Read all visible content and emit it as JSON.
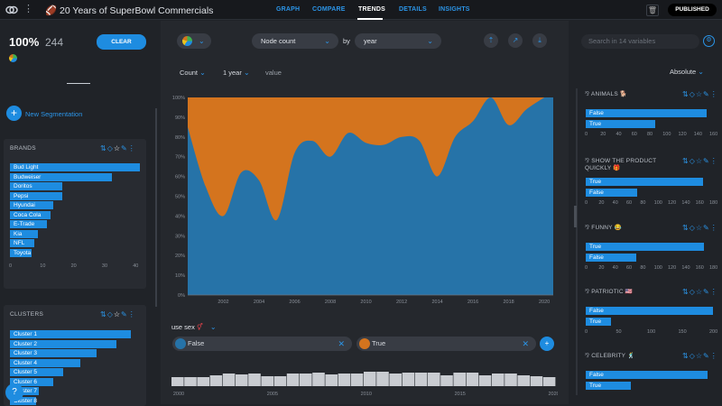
{
  "app": {
    "title": "20 Years of SuperBowl Commercials",
    "publish_label": "PUBLISHED"
  },
  "nav": {
    "tabs": [
      "GRAPH",
      "COMPARE",
      "TRENDS",
      "DETAILS",
      "INSIGHTS"
    ],
    "active": "TRENDS"
  },
  "colors": {
    "accent": "#1e8ce0",
    "series_false": "#2673a8",
    "series_true": "#d4741e",
    "background": "#202328"
  },
  "left": {
    "percent": "100%",
    "count": "244",
    "clear_label": "CLEAR",
    "new_segmentation_label": "New Segmentation",
    "brands": {
      "title": "BRANDS",
      "axis_ticks": [
        "0",
        "10",
        "20",
        "30",
        "40"
      ],
      "items": [
        {
          "label": "Bud Light",
          "value": 42
        },
        {
          "label": "Budweiser",
          "value": 33
        },
        {
          "label": "Doritos",
          "value": 17
        },
        {
          "label": "Pepsi",
          "value": 17
        },
        {
          "label": "Hyundai",
          "value": 14
        },
        {
          "label": "Coca Cola",
          "value": 13
        },
        {
          "label": "E-Trade",
          "value": 12
        },
        {
          "label": "Kia",
          "value": 9
        },
        {
          "label": "NFL",
          "value": 8
        },
        {
          "label": "Toyota",
          "value": 7
        }
      ]
    },
    "clusters": {
      "title": "CLUSTERS",
      "items": [
        {
          "label": "Cluster 1",
          "value": 100
        },
        {
          "label": "Cluster 2",
          "value": 88
        },
        {
          "label": "Cluster 3",
          "value": 72
        },
        {
          "label": "Cluster 4",
          "value": 58
        },
        {
          "label": "Cluster 5",
          "value": 44
        },
        {
          "label": "Cluster 6",
          "value": 36
        },
        {
          "label": "Cluster 7",
          "value": 24
        },
        {
          "label": "Cluster 8",
          "value": 22
        }
      ]
    }
  },
  "controls": {
    "metric": "Node count",
    "by_label": "by",
    "group_by": "year",
    "aggregate": "Count",
    "bin": "1 year",
    "value_label": "value",
    "segment_variable": "use sex",
    "segments": [
      {
        "label": "False",
        "color": "#2673a8"
      },
      {
        "label": "True",
        "color": "#d4741e"
      }
    ]
  },
  "chart_data": {
    "type": "area",
    "stacked_percent": true,
    "x": [
      2000,
      2001,
      2002,
      2003,
      2004,
      2005,
      2006,
      2007,
      2008,
      2009,
      2010,
      2011,
      2012,
      2013,
      2014,
      2015,
      2016,
      2017,
      2018,
      2019,
      2020
    ],
    "series": [
      {
        "name": "False",
        "values": [
          85,
          55,
          40,
          62,
          58,
          38,
          72,
          78,
          70,
          82,
          77,
          76,
          80,
          78,
          60,
          80,
          88,
          100,
          86,
          94,
          100
        ]
      },
      {
        "name": "True",
        "values": [
          15,
          45,
          60,
          38,
          42,
          62,
          28,
          22,
          30,
          18,
          23,
          24,
          20,
          22,
          40,
          20,
          12,
          0,
          14,
          6,
          0
        ]
      }
    ],
    "y_ticks": [
      "0%",
      "10%",
      "20%",
      "30%",
      "40%",
      "50%",
      "60%",
      "70%",
      "80%",
      "90%",
      "100%"
    ],
    "x_ticks": [
      "2002",
      "2004",
      "2006",
      "2008",
      "2010",
      "2012",
      "2014",
      "2016",
      "2018",
      "2020"
    ],
    "ylim": [
      0,
      100
    ],
    "histogram": {
      "x_ticks": [
        "2000",
        "2005",
        "2010",
        "2015",
        "2020"
      ],
      "values": [
        10,
        10,
        10,
        12,
        14,
        13,
        14,
        11,
        11,
        14,
        14,
        15,
        13,
        14,
        14,
        16,
        16,
        14,
        15,
        15,
        15,
        12,
        15,
        15,
        12,
        14,
        14,
        12,
        11,
        10
      ]
    }
  },
  "right": {
    "search_placeholder": "Search in 14 variables",
    "sort_label": "Absolute",
    "vars": [
      {
        "title": "ANIMALS",
        "emoji": "🐕",
        "bars": [
          {
            "label": "False",
            "value": 155
          },
          {
            "label": "True",
            "value": 89
          }
        ],
        "ticks": [
          "0",
          "20",
          "40",
          "60",
          "80",
          "100",
          "120",
          "140",
          "160"
        ]
      },
      {
        "title": "SHOW THE PRODUCT QUICKLY",
        "emoji": "🎁",
        "bars": [
          {
            "label": "True",
            "value": 170
          },
          {
            "label": "False",
            "value": 74
          }
        ],
        "ticks": [
          "0",
          "20",
          "40",
          "60",
          "80",
          "100",
          "120",
          "140",
          "160",
          "180"
        ]
      },
      {
        "title": "FUNNY",
        "emoji": "😂",
        "bars": [
          {
            "label": "True",
            "value": 171
          },
          {
            "label": "False",
            "value": 73
          }
        ],
        "ticks": [
          "0",
          "20",
          "40",
          "60",
          "80",
          "100",
          "120",
          "140",
          "160",
          "180"
        ]
      },
      {
        "title": "PATRIOTIC",
        "emoji": "🇺🇸",
        "bars": [
          {
            "label": "False",
            "value": 204
          },
          {
            "label": "True",
            "value": 40
          }
        ],
        "ticks": [
          "0",
          "50",
          "100",
          "150",
          "200"
        ]
      },
      {
        "title": "CELEBRITY",
        "emoji": "🕺",
        "bars": [
          {
            "label": "False",
            "value": 178
          },
          {
            "label": "True",
            "value": 66
          }
        ],
        "ticks": []
      }
    ]
  }
}
